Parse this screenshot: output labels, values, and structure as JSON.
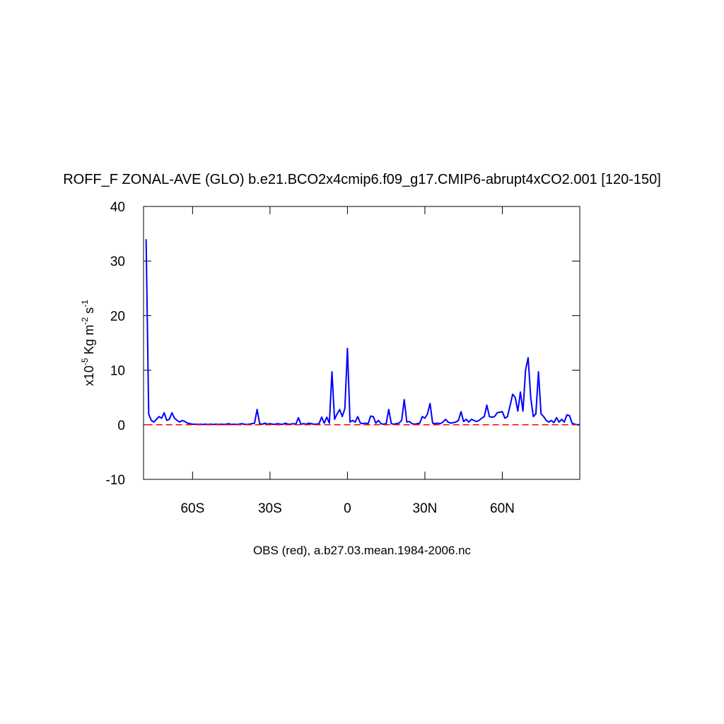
{
  "chart_data": {
    "type": "line",
    "title": "ROFF_F ZONAL-AVE (GLO) b.e21.BCO2x4cmip6.f09_g17.CMIP6-abrupt4xCO2.001 [120-150]",
    "ylabel": [
      {
        "text": "x10"
      },
      {
        "sup": "-5"
      },
      {
        "text": " Kg m"
      },
      {
        "sup": "-2"
      },
      {
        "text": " s"
      },
      {
        "sup": "-1"
      }
    ],
    "xlabel": "OBS (red), a.b27.03.mean.1984-2006.nc",
    "xlim": [
      -79,
      90
    ],
    "ylim": [
      -10,
      40
    ],
    "xticks": [
      {
        "value": -60,
        "label": "60S"
      },
      {
        "value": -30,
        "label": "30S"
      },
      0,
      {
        "value": 30,
        "label": "30N"
      },
      {
        "value": 60,
        "label": "60N"
      }
    ],
    "yticks": [
      -10,
      0,
      10,
      20,
      30,
      40
    ],
    "series": [
      {
        "color": "#0000ff",
        "dashed": false,
        "x": [
          -78,
          -77,
          -76,
          -75,
          -74,
          -73,
          -72,
          -71,
          -70,
          -69,
          -68,
          -67,
          -66,
          -65,
          -64,
          -63,
          -62,
          -61,
          -60,
          -59,
          -58,
          -57,
          -56,
          -55,
          -54,
          -53,
          -52,
          -51,
          -50,
          -49,
          -48,
          -47,
          -46,
          -45,
          -44,
          -43,
          -42,
          -41,
          -40,
          -39,
          -38,
          -37,
          -36,
          -35,
          -34,
          -33,
          -32,
          -31,
          -30,
          -29,
          -28,
          -27,
          -26,
          -25,
          -24,
          -23,
          -22,
          -21,
          -20,
          -19,
          -18,
          -17,
          -16,
          -15,
          -14,
          -13,
          -12,
          -11,
          -10,
          -9,
          -8,
          -7,
          -6,
          -5,
          -4,
          -3,
          -2,
          -1,
          0,
          1,
          2,
          3,
          4,
          5,
          6,
          7,
          8,
          9,
          10,
          11,
          12,
          13,
          14,
          15,
          16,
          17,
          18,
          19,
          20,
          21,
          22,
          23,
          24,
          25,
          26,
          27,
          28,
          29,
          30,
          31,
          32,
          33,
          34,
          35,
          36,
          37,
          38,
          39,
          40,
          41,
          42,
          43,
          44,
          45,
          46,
          47,
          48,
          49,
          50,
          51,
          52,
          53,
          54,
          55,
          56,
          57,
          58,
          59,
          60,
          61,
          62,
          63,
          64,
          65,
          66,
          67,
          68,
          69,
          70,
          71,
          72,
          73,
          74,
          75,
          76,
          77,
          78,
          79,
          80,
          81,
          82,
          83,
          84,
          85,
          86,
          87,
          88,
          89,
          90
        ],
        "values": [
          34,
          2,
          0.8,
          0.5,
          1,
          1.5,
          1.2,
          2.2,
          0.8,
          1,
          2.2,
          1.2,
          0.8,
          0.5,
          0.8,
          0.6,
          0.3,
          0.2,
          0.1,
          0.1,
          0.05,
          0.1,
          0.05,
          0.1,
          0.05,
          0.1,
          0.05,
          0.1,
          0.05,
          0.1,
          0.05,
          0.1,
          0.2,
          0.05,
          0.1,
          0.05,
          0.1,
          0.2,
          0.1,
          0.05,
          0.1,
          0.2,
          0.3,
          2.8,
          0.2,
          0.1,
          0.3,
          0.1,
          0.2,
          0.1,
          0.1,
          0.2,
          0.1,
          0.1,
          0.3,
          0.1,
          0.1,
          0.2,
          0.1,
          1.3,
          0.1,
          0.2,
          0.1,
          0.3,
          0.2,
          0.1,
          0.1,
          0.2,
          1.4,
          0.3,
          1.4,
          0.3,
          9.7,
          1,
          2,
          2.8,
          1.5,
          3,
          14,
          0.5,
          0.8,
          0.5,
          1.5,
          0.3,
          0.2,
          0.3,
          0.2,
          1.6,
          1.5,
          0.3,
          0.8,
          0.2,
          0.1,
          0.2,
          2.8,
          0.2,
          0.1,
          0.2,
          0.3,
          0.8,
          4.6,
          0.5,
          0.6,
          0.2,
          0.1,
          0.2,
          0.3,
          1.5,
          1.2,
          2,
          3.9,
          0.3,
          0.2,
          0.3,
          0.2,
          0.5,
          1,
          0.5,
          0.3,
          0.4,
          0.5,
          0.8,
          2.4,
          0.6,
          1,
          0.5,
          1,
          0.8,
          0.6,
          0.8,
          1.2,
          1.5,
          3.6,
          1.5,
          1.4,
          1.5,
          2.2,
          2.3,
          2.4,
          1.2,
          1.5,
          3.5,
          5.6,
          5,
          2.5,
          6,
          2.5,
          10,
          12.3,
          5,
          1.5,
          2,
          9.7,
          2,
          1.5,
          0.8,
          0.5,
          0.8,
          0.4,
          1.3,
          0.5,
          1,
          0.5,
          1.8,
          1.7,
          0.3,
          0.1,
          0,
          0
        ]
      },
      {
        "color": "#ff0000",
        "dashed": true,
        "x": [
          -78,
          89
        ],
        "values": [
          0,
          0
        ]
      }
    ]
  }
}
